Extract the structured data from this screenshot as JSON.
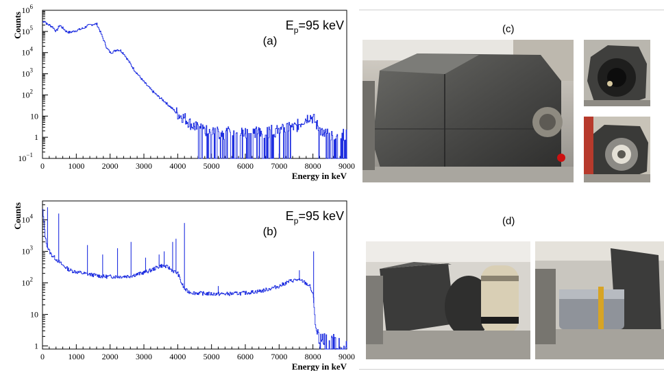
{
  "chart_data": [
    {
      "type": "line",
      "panel_label": "(a)",
      "annotation": {
        "main": "E",
        "sub": "p",
        "rest": "=95 keV"
      },
      "xlabel": "Energy in keV",
      "ylabel": "Counts",
      "xlim": [
        0,
        9000
      ],
      "ylim_log10": [
        -1,
        6
      ],
      "yscale": "log",
      "x_ticks": [
        "0",
        "1000",
        "2000",
        "3000",
        "4000",
        "5000",
        "6000",
        "7000",
        "8000",
        "9000"
      ],
      "y_ticks": [
        {
          "base": "10",
          "exp": "−1",
          "value": -1
        },
        {
          "base": "1",
          "exp": "",
          "value": 0
        },
        {
          "base": "10",
          "exp": "",
          "value": 1
        },
        {
          "base": "10",
          "exp": "2",
          "value": 2
        },
        {
          "base": "10",
          "exp": "3",
          "value": 3
        },
        {
          "base": "10",
          "exp": "4",
          "value": 4
        },
        {
          "base": "10",
          "exp": "5",
          "value": 5
        },
        {
          "base": "10",
          "exp": "6",
          "value": 6
        }
      ],
      "series_color": "#1f2fe0",
      "series": [
        {
          "x": [
            0,
            60,
            120,
            200,
            300,
            400,
            500,
            600,
            700,
            800,
            900,
            1000,
            1100,
            1200,
            1300,
            1400,
            1500,
            1600,
            1700,
            1800,
            1900,
            2000,
            2100,
            2200,
            2300,
            2400,
            2500,
            2600,
            2700,
            2800,
            2900,
            3000,
            3200,
            3400,
            3600,
            3800,
            4000,
            4200,
            4400,
            4600,
            5000,
            5500,
            6000,
            6500,
            7000,
            7500,
            7700,
            7900,
            8000,
            8100,
            8300,
            8600,
            9000
          ],
          "log10y": [
            5.45,
            5.5,
            5.35,
            5.3,
            5.2,
            5.0,
            5.3,
            5.15,
            5.0,
            4.95,
            5.0,
            5.05,
            5.1,
            5.15,
            5.25,
            5.3,
            5.35,
            5.35,
            5.0,
            4.6,
            4.2,
            4.0,
            4.05,
            4.15,
            4.1,
            3.95,
            3.7,
            3.45,
            3.2,
            3.0,
            2.8,
            2.6,
            2.25,
            1.95,
            1.7,
            1.4,
            1.1,
            0.9,
            0.6,
            0.4,
            0.2,
            0.2,
            0.2,
            0.25,
            0.3,
            0.5,
            0.8,
            1.0,
            0.9,
            0.6,
            0.1,
            0.1,
            0.1
          ]
        }
      ]
    },
    {
      "type": "line",
      "panel_label": "(b)",
      "annotation": {
        "main": "E",
        "sub": "p",
        "rest": "=95 keV"
      },
      "xlabel": "Energy in keV",
      "ylabel": "Counts",
      "xlim": [
        0,
        9000
      ],
      "ylim_log10": [
        -0.1,
        4.6
      ],
      "yscale": "log",
      "x_ticks": [
        "0",
        "1000",
        "2000",
        "3000",
        "4000",
        "5000",
        "6000",
        "7000",
        "8000",
        "9000"
      ],
      "y_ticks": [
        {
          "base": "1",
          "exp": "",
          "value": 0
        },
        {
          "base": "10",
          "exp": "",
          "value": 1
        },
        {
          "base": "10",
          "exp": "2",
          "value": 2
        },
        {
          "base": "10",
          "exp": "3",
          "value": 3
        },
        {
          "base": "10",
          "exp": "4",
          "value": 4
        }
      ],
      "series_color": "#1f2fe0",
      "series": [
        {
          "x": [
            0,
            80,
            150,
            250,
            400,
            600,
            800,
            1000,
            1200,
            1500,
            1800,
            2000,
            2300,
            2600,
            2900,
            3200,
            3500,
            3700,
            3900,
            4000,
            4100,
            4200,
            4300,
            4500,
            5000,
            5500,
            6000,
            6500,
            7000,
            7300,
            7500,
            7700,
            7900,
            8000,
            8050,
            8100,
            8200,
            9000
          ],
          "log10y": [
            4.3,
            3.4,
            3.1,
            2.9,
            2.75,
            2.55,
            2.4,
            2.35,
            2.3,
            2.25,
            2.2,
            2.2,
            2.2,
            2.22,
            2.3,
            2.4,
            2.55,
            2.5,
            2.35,
            2.3,
            2.0,
            1.8,
            1.72,
            1.68,
            1.65,
            1.65,
            1.68,
            1.75,
            1.9,
            2.05,
            2.1,
            2.05,
            1.9,
            1.6,
            1.0,
            0.4,
            0.1,
            0.05
          ]
        }
      ],
      "peaks": [
        [
          150,
          4.4
        ],
        [
          480,
          4.2
        ],
        [
          1330,
          3.2
        ],
        [
          1780,
          2.9
        ],
        [
          2220,
          3.1
        ],
        [
          2620,
          3.3
        ],
        [
          3050,
          2.8
        ],
        [
          3450,
          2.9
        ],
        [
          3600,
          3.0
        ],
        [
          3850,
          3.3
        ],
        [
          3950,
          3.4
        ],
        [
          4200,
          3.9
        ],
        [
          5200,
          1.9
        ],
        [
          7600,
          2.4
        ],
        [
          8020,
          3.0
        ]
      ]
    }
  ],
  "photos": {
    "c_label": "(c)",
    "d_label": "(d)"
  }
}
